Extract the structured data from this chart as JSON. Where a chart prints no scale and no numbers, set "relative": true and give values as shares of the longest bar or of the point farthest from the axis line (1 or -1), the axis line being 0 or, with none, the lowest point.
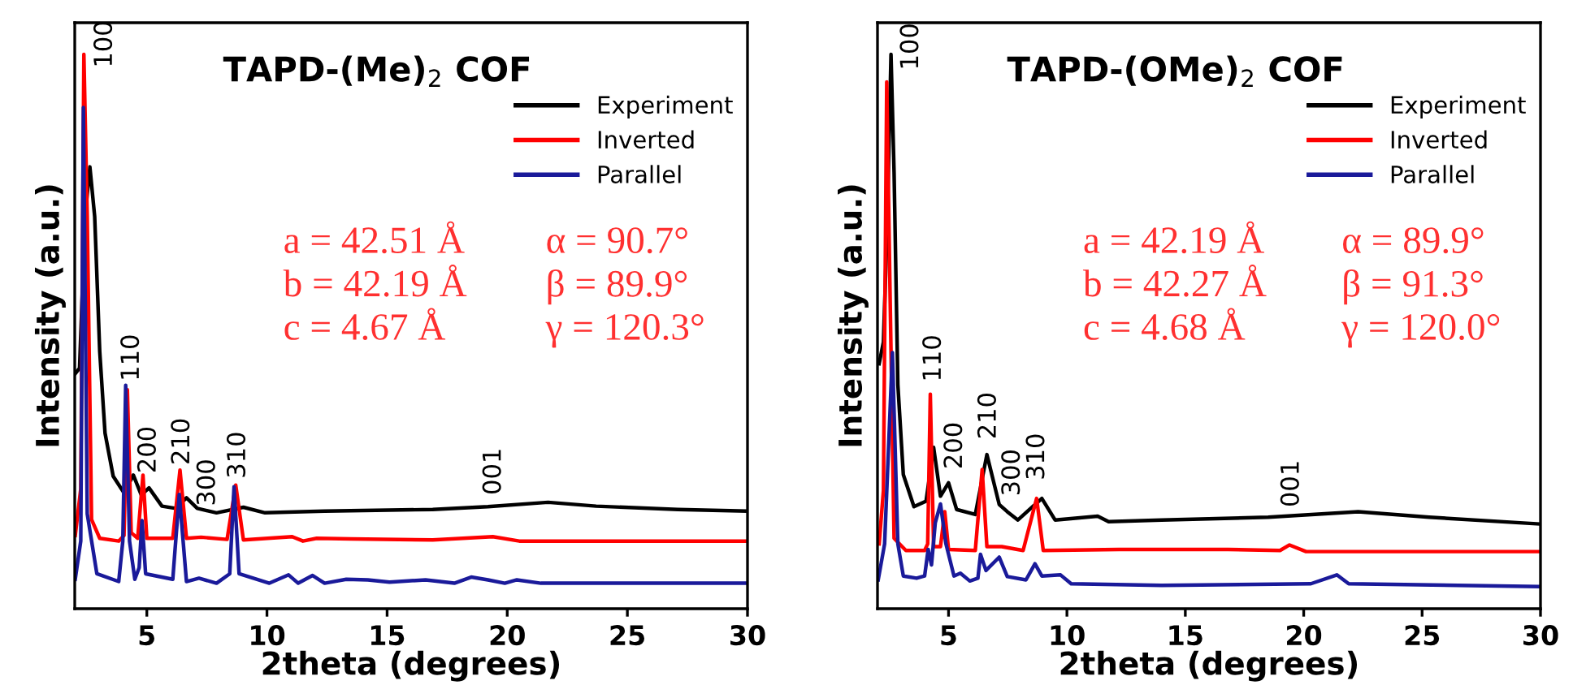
{
  "chart_data": [
    {
      "type": "line",
      "title": "TAPD-(Me)$_{2}$ COF",
      "xlabel": "2theta (degrees)",
      "ylabel": "Intensity (a.u.)",
      "relative": true,
      "xlim": [
        2,
        30
      ],
      "xticks": [
        5,
        10,
        15,
        20,
        25,
        30
      ],
      "tick_labels": "x",
      "legend": "top right",
      "grid": false,
      "marker": "none",
      "line_style": "solid",
      "series": [
        {
          "name": "Experiment",
          "color": "#000000",
          "x": [
            2.02,
            2.2,
            2.43,
            2.63,
            2.83,
            3.04,
            3.26,
            3.6,
            4.05,
            4.44,
            4.77,
            5.09,
            5.63,
            6.2,
            6.65,
            7.1,
            7.9,
            9.02,
            9.92,
            12.4,
            16.9,
            19.2,
            21.7,
            23.7,
            27.1,
            30
          ],
          "values": [
            0.424,
            0.434,
            0.707,
            0.797,
            0.707,
            0.464,
            0.317,
            0.239,
            0.209,
            0.241,
            0.205,
            0.218,
            0.185,
            0.181,
            0.2,
            0.181,
            0.173,
            0.183,
            0.173,
            0.176,
            0.179,
            0.184,
            0.192,
            0.185,
            0.179,
            0.176
          ]
        },
        {
          "name": "Inverted",
          "color": "#ff0000",
          "x": [
            2.02,
            2.25,
            2.38,
            2.52,
            2.7,
            3.04,
            3.83,
            4.05,
            4.19,
            4.35,
            4.62,
            4.84,
            5.0,
            6.08,
            6.38,
            6.65,
            7.26,
            8.34,
            8.7,
            9.02,
            11.05,
            11.5,
            12.07,
            13.5,
            16.9,
            19.4,
            20.5,
            30
          ],
          "values": [
            0.132,
            0.216,
            1.0,
            0.707,
            0.161,
            0.127,
            0.122,
            0.132,
            0.395,
            0.137,
            0.127,
            0.241,
            0.127,
            0.127,
            0.25,
            0.127,
            0.129,
            0.125,
            0.223,
            0.124,
            0.13,
            0.122,
            0.127,
            0.126,
            0.124,
            0.13,
            0.122,
            0.122
          ]
        },
        {
          "name": "Parallel",
          "color": "#1a1a9a",
          "x": [
            2.02,
            2.25,
            2.36,
            2.52,
            2.92,
            3.83,
            4.0,
            4.12,
            4.28,
            4.5,
            4.68,
            4.8,
            4.95,
            6.08,
            6.35,
            6.65,
            7.17,
            7.9,
            8.45,
            8.63,
            8.84,
            10.1,
            10.9,
            11.3,
            11.9,
            12.4,
            13.3,
            14.2,
            15.1,
            16.6,
            17.8,
            18.5,
            19.2,
            19.9,
            20.4,
            21.4,
            30
          ],
          "values": [
            0.053,
            0.122,
            0.904,
            0.171,
            0.063,
            0.049,
            0.122,
            0.403,
            0.122,
            0.053,
            0.074,
            0.159,
            0.063,
            0.053,
            0.206,
            0.049,
            0.055,
            0.046,
            0.063,
            0.22,
            0.063,
            0.046,
            0.061,
            0.046,
            0.06,
            0.046,
            0.053,
            0.052,
            0.048,
            0.052,
            0.046,
            0.057,
            0.052,
            0.046,
            0.052,
            0.046,
            0.046
          ]
        }
      ],
      "annotations": [
        "100",
        "110",
        "200",
        "210",
        "300",
        "310",
        "001",
        "a = 42.51 Å",
        "α = 90.7°",
        "b = 42.19 Å",
        "β = 89.9°",
        "c = 4.67 Å",
        "γ = 120.3°"
      ]
    },
    {
      "type": "line",
      "title": "TAPD-(OMe)$_{2}$ COF",
      "xlabel": "2theta (degrees)",
      "ylabel": "Intensity (a.u.)",
      "relative": true,
      "xlim": [
        2,
        30
      ],
      "xticks": [
        5,
        10,
        15,
        20,
        25,
        30
      ],
      "tick_labels": "x",
      "legend": "top right",
      "grid": false,
      "marker": "none",
      "line_style": "solid",
      "series": [
        {
          "name": "Experiment",
          "color": "#000000",
          "x": [
            2.07,
            2.25,
            2.41,
            2.57,
            2.7,
            2.86,
            3.09,
            3.54,
            4.05,
            4.37,
            4.66,
            5.0,
            5.34,
            6.13,
            6.62,
            7.14,
            7.48,
            7.93,
            8.94,
            9.5,
            11.3,
            11.76,
            14.0,
            18.5,
            22.3,
            25.3,
            29.9
          ],
          "values": [
            0.442,
            0.481,
            0.692,
            1.0,
            0.787,
            0.404,
            0.242,
            0.184,
            0.194,
            0.291,
            0.203,
            0.227,
            0.179,
            0.17,
            0.278,
            0.188,
            0.175,
            0.16,
            0.199,
            0.16,
            0.167,
            0.157,
            0.16,
            0.165,
            0.175,
            0.165,
            0.153
          ]
        },
        {
          "name": "Inverted",
          "color": "#ff0000",
          "x": [
            2.07,
            2.25,
            2.39,
            2.52,
            2.7,
            3.2,
            3.99,
            4.12,
            4.23,
            4.37,
            4.66,
            4.84,
            5.0,
            6.13,
            6.42,
            6.62,
            7.25,
            8.15,
            8.72,
            9.0,
            12.2,
            16.8,
            19.0,
            19.4,
            20.1,
            29.9
          ],
          "values": [
            0.117,
            0.213,
            0.95,
            0.596,
            0.127,
            0.105,
            0.105,
            0.117,
            0.387,
            0.112,
            0.112,
            0.175,
            0.107,
            0.105,
            0.251,
            0.112,
            0.112,
            0.105,
            0.199,
            0.105,
            0.107,
            0.107,
            0.105,
            0.115,
            0.103,
            0.103
          ]
        },
        {
          "name": "Parallel",
          "color": "#1a1a9a",
          "x": [
            2.03,
            2.3,
            2.63,
            2.86,
            3.09,
            3.65,
            3.99,
            4.14,
            4.28,
            4.44,
            4.66,
            4.89,
            5.23,
            5.5,
            5.9,
            6.24,
            6.35,
            6.58,
            7.14,
            7.48,
            8.27,
            8.65,
            8.94,
            9.73,
            10.18,
            14.0,
            20.3,
            21.4,
            21.9,
            29.9
          ],
          "values": [
            0.052,
            0.117,
            0.462,
            0.117,
            0.059,
            0.055,
            0.059,
            0.107,
            0.079,
            0.155,
            0.189,
            0.117,
            0.059,
            0.064,
            0.05,
            0.055,
            0.098,
            0.069,
            0.093,
            0.058,
            0.052,
            0.081,
            0.059,
            0.061,
            0.045,
            0.042,
            0.045,
            0.061,
            0.045,
            0.04
          ]
        }
      ],
      "annotations": [
        "100",
        "110",
        "200",
        "210",
        "300",
        "310",
        "001",
        "a = 42.19 Å",
        "α = 89.9°",
        "b = 42.27 Å",
        "β = 91.3°",
        "c = 4.68 Å",
        "γ = 120.0°"
      ]
    }
  ]
}
